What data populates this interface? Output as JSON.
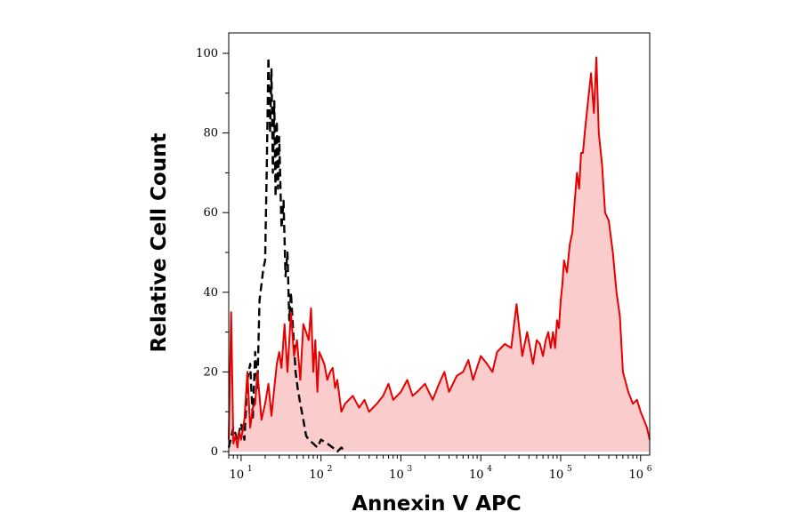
{
  "chart_data": {
    "type": "area",
    "xlabel": "Annexin V APC",
    "ylabel": "Relative Cell Count",
    "x_scale": "log",
    "xlim": [
      7,
      1300000
    ],
    "ylim": [
      0,
      105
    ],
    "x_ticks": [
      {
        "value": 10,
        "base": "10",
        "exp": "1"
      },
      {
        "value": 100,
        "base": "10",
        "exp": "2"
      },
      {
        "value": 1000,
        "base": "10",
        "exp": "3"
      },
      {
        "value": 10000,
        "base": "10",
        "exp": "4"
      },
      {
        "value": 100000,
        "base": "10",
        "exp": "5"
      },
      {
        "value": 1000000,
        "base": "10",
        "exp": "6"
      }
    ],
    "y_ticks": [
      {
        "value": 0,
        "label": "0"
      },
      {
        "value": 20,
        "label": "20"
      },
      {
        "value": 40,
        "label": "40"
      },
      {
        "value": 60,
        "label": "60"
      },
      {
        "value": 80,
        "label": "80"
      },
      {
        "value": 100,
        "label": "100"
      }
    ],
    "series": [
      {
        "style": "dashed",
        "color": "#000000",
        "filled": false,
        "x": [
          7,
          8,
          9,
          10,
          11,
          12,
          13,
          14,
          15,
          16,
          17,
          18,
          19,
          20,
          21,
          22,
          23,
          24,
          25,
          26,
          27,
          28,
          29,
          30,
          32,
          34,
          36,
          38,
          40,
          42,
          45,
          48,
          51,
          55,
          60,
          65,
          70,
          80,
          90,
          100,
          120,
          140,
          160,
          180,
          200
        ],
        "y": [
          1,
          6,
          3,
          7,
          3,
          18,
          22,
          8,
          25,
          16,
          38,
          42,
          46,
          48,
          72,
          99,
          80,
          96,
          70,
          88,
          64,
          83,
          66,
          79,
          56,
          63,
          44,
          50,
          33,
          40,
          30,
          20,
          16,
          12,
          8,
          4,
          3,
          2,
          1,
          3,
          2,
          1,
          0,
          1,
          0
        ]
      },
      {
        "style": "solid",
        "color": "#e60000",
        "fill": "#fbcccc",
        "filled": true,
        "x": [
          7,
          7.5,
          8,
          8.5,
          9,
          9.5,
          10,
          11,
          12,
          13,
          14,
          15,
          16,
          17,
          18,
          20,
          22,
          24,
          26,
          28,
          30,
          32,
          35,
          38,
          42,
          46,
          50,
          55,
          60,
          65,
          70,
          75,
          80,
          85,
          90,
          95,
          100,
          110,
          120,
          130,
          140,
          150,
          160,
          180,
          200,
          250,
          300,
          350,
          400,
          500,
          600,
          700,
          800,
          1000,
          1200,
          1400,
          1600,
          2000,
          2500,
          3000,
          3500,
          4000,
          5000,
          6000,
          7000,
          8000,
          10000,
          12000,
          14000,
          16000,
          20000,
          24000,
          28000,
          33000,
          38000,
          45000,
          50000,
          55000,
          60000,
          65000,
          70000,
          75000,
          80000,
          85000,
          90000,
          95000,
          100000,
          105000,
          110000,
          120000,
          130000,
          140000,
          150000,
          160000,
          170000,
          180000,
          190000,
          200000,
          220000,
          240000,
          260000,
          280000,
          300000,
          330000,
          360000,
          400000,
          450000,
          500000,
          550000,
          600000,
          700000,
          800000,
          900000,
          1000000,
          1100000,
          1200000,
          1300000
        ],
        "y": [
          3,
          35,
          2,
          4,
          1,
          5,
          3,
          8,
          20,
          6,
          11,
          12,
          20,
          14,
          8,
          12,
          17,
          9,
          16,
          22,
          25,
          21,
          32,
          20,
          35,
          24,
          28,
          18,
          32,
          30,
          28,
          36,
          20,
          28,
          15,
          25,
          24,
          22,
          18,
          20,
          21,
          16,
          18,
          10,
          12,
          14,
          11,
          13,
          10,
          12,
          14,
          17,
          13,
          15,
          18,
          14,
          15,
          17,
          13,
          17,
          20,
          15,
          19,
          20,
          23,
          18,
          24,
          22,
          20,
          25,
          27,
          26,
          37,
          24,
          30,
          22,
          28,
          27,
          24,
          28,
          30,
          26,
          30,
          26,
          33,
          31,
          38,
          42,
          48,
          45,
          52,
          55,
          63,
          70,
          66,
          75,
          75,
          80,
          88,
          95,
          85,
          99,
          80,
          72,
          60,
          58,
          50,
          40,
          34,
          20,
          15,
          12,
          13,
          10,
          8,
          6,
          3
        ]
      }
    ]
  }
}
